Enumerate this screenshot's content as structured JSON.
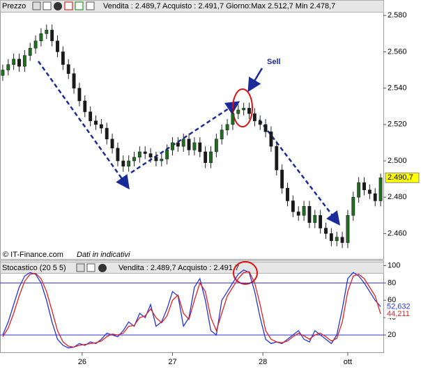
{
  "chart_data": [
    {
      "type": "candlestick",
      "title": "Prezzo",
      "info": "Vendita : 2.489,7 Acquisto : 2.491,7 Giorno:Max 2.512,7 Min 2.478,7",
      "annotations": [
        "Sell",
        "© IT-Finance.com",
        "Dati in indicativi"
      ],
      "up_color": "#1f6e1f",
      "down_color": "#1a1a1a",
      "last_label_color": "#ffff00",
      "xlim": [
        -0.5,
        69.5
      ],
      "ylim": [
        2446,
        2582
      ],
      "yticks": [
        {
          "value": 2460,
          "label": "2.460"
        },
        {
          "value": 2480,
          "label": "2.480"
        },
        {
          "value": 2500,
          "label": "2.500"
        },
        {
          "value": 2520,
          "label": "2.520"
        },
        {
          "value": 2540,
          "label": "2.540"
        },
        {
          "value": 2560,
          "label": "2.560"
        },
        {
          "value": 2580,
          "label": "2.580"
        }
      ],
      "x": [
        0,
        1,
        2,
        3,
        4,
        5,
        6,
        7,
        8,
        9,
        10,
        11,
        12,
        13,
        14,
        15,
        16,
        17,
        18,
        19,
        20,
        21,
        22,
        23,
        24,
        25,
        26,
        27,
        28,
        29,
        30,
        31,
        32,
        33,
        34,
        35,
        36,
        37,
        38,
        39,
        40,
        41,
        42,
        43,
        44,
        45,
        46,
        47,
        48,
        49,
        50,
        51,
        52,
        53,
        54,
        55,
        56,
        57,
        58,
        59,
        60,
        61,
        62,
        63,
        64,
        65,
        66,
        67,
        68,
        69
      ],
      "open": [
        2547,
        2550,
        2553,
        2556,
        2552,
        2558,
        2562,
        2566,
        2570,
        2572,
        2566,
        2560,
        2553,
        2548,
        2540,
        2533,
        2527,
        2522,
        2520,
        2518,
        2512,
        2507,
        2500,
        2497,
        2500,
        2502,
        2505,
        2504,
        2502,
        2500,
        2501,
        2506,
        2510,
        2508,
        2512,
        2506,
        2510,
        2505,
        2499,
        2505,
        2512,
        2517,
        2520,
        2526,
        2528,
        2529,
        2526,
        2522,
        2520,
        2516,
        2508,
        2495,
        2485,
        2478,
        2472,
        2470,
        2475,
        2466,
        2470,
        2463,
        2460,
        2456,
        2458,
        2455,
        2470,
        2480,
        2488,
        2484,
        2482,
        2478
      ],
      "high": [
        2553,
        2556,
        2559,
        2559,
        2561,
        2565,
        2569,
        2573,
        2575,
        2575,
        2569,
        2563,
        2556,
        2551,
        2543,
        2536,
        2530,
        2525,
        2523,
        2521,
        2515,
        2510,
        2503,
        2503,
        2505,
        2508,
        2508,
        2507,
        2505,
        2504,
        2509,
        2513,
        2513,
        2515,
        2515,
        2513,
        2513,
        2508,
        2508,
        2515,
        2520,
        2523,
        2529,
        2531,
        2532,
        2532,
        2529,
        2525,
        2523,
        2519,
        2511,
        2498,
        2488,
        2481,
        2475,
        2478,
        2478,
        2473,
        2473,
        2466,
        2463,
        2461,
        2461,
        2473,
        2483,
        2491,
        2491,
        2487,
        2485,
        2493
      ],
      "low": [
        2544,
        2547,
        2550,
        2549,
        2549,
        2555,
        2559,
        2563,
        2567,
        2563,
        2557,
        2550,
        2545,
        2537,
        2530,
        2524,
        2519,
        2517,
        2515,
        2509,
        2504,
        2497,
        2494,
        2494,
        2497,
        2499,
        2501,
        2499,
        2497,
        2497,
        2498,
        2503,
        2505,
        2505,
        2503,
        2503,
        2502,
        2496,
        2496,
        2502,
        2509,
        2514,
        2517,
        2523,
        2525,
        2523,
        2519,
        2517,
        2513,
        2505,
        2492,
        2482,
        2475,
        2469,
        2467,
        2467,
        2463,
        2463,
        2460,
        2457,
        2453,
        2453,
        2452,
        2452,
        2467,
        2477,
        2481,
        2479,
        2475,
        2475
      ],
      "close": [
        2550,
        2553,
        2556,
        2552,
        2558,
        2562,
        2566,
        2570,
        2572,
        2566,
        2560,
        2553,
        2548,
        2540,
        2533,
        2527,
        2522,
        2520,
        2518,
        2512,
        2507,
        2500,
        2497,
        2500,
        2502,
        2505,
        2504,
        2502,
        2500,
        2501,
        2506,
        2510,
        2508,
        2512,
        2506,
        2510,
        2505,
        2499,
        2505,
        2512,
        2517,
        2520,
        2526,
        2528,
        2529,
        2526,
        2522,
        2520,
        2516,
        2508,
        2495,
        2485,
        2478,
        2472,
        2470,
        2475,
        2466,
        2470,
        2463,
        2460,
        2456,
        2458,
        2455,
        2470,
        2480,
        2488,
        2484,
        2482,
        2478,
        2490.7
      ],
      "value_labels": [
        null,
        null,
        null,
        null,
        null,
        null,
        null,
        null,
        null,
        null,
        null,
        null,
        null,
        null,
        null,
        null,
        null,
        null,
        null,
        null,
        null,
        null,
        null,
        null,
        null,
        null,
        null,
        null,
        null,
        null,
        null,
        null,
        null,
        null,
        null,
        null,
        null,
        null,
        null,
        null,
        null,
        null,
        null,
        null,
        null,
        null,
        null,
        null,
        null,
        null,
        null,
        null,
        null,
        null,
        null,
        null,
        null,
        null,
        null,
        null,
        null,
        null,
        null,
        null,
        null,
        null,
        null,
        null,
        null,
        "2.490,7"
      ]
    },
    {
      "type": "line",
      "title": "Stocastico (20 5 5)",
      "info": "Vendita : 2.489,7 Acquisto : 2.491,7",
      "xlim": [
        -0.5,
        69.5
      ],
      "xticks": [
        {
          "value": 14.5,
          "label": "26"
        },
        {
          "value": 31,
          "label": "27"
        },
        {
          "value": 47.5,
          "label": "28"
        },
        {
          "value": 63,
          "label": "ott"
        }
      ],
      "ylim": [
        0,
        106
      ],
      "yticks": [
        20,
        40,
        60,
        80,
        100
      ],
      "hlines": [
        20,
        80
      ],
      "hline_color": "#3333cc",
      "x": [
        0,
        1,
        2,
        3,
        4,
        5,
        6,
        7,
        8,
        9,
        10,
        11,
        12,
        13,
        14,
        15,
        16,
        17,
        18,
        19,
        20,
        21,
        22,
        23,
        24,
        25,
        26,
        27,
        28,
        29,
        30,
        31,
        32,
        33,
        34,
        35,
        36,
        37,
        38,
        39,
        40,
        41,
        42,
        43,
        44,
        45,
        46,
        47,
        48,
        49,
        50,
        51,
        52,
        53,
        54,
        55,
        56,
        57,
        58,
        59,
        60,
        61,
        62,
        63,
        64,
        65,
        66,
        67,
        68,
        69
      ],
      "series": [
        {
          "color": "#2233dd",
          "values": [
            20,
            35,
            55,
            75,
            88,
            92,
            90,
            80,
            60,
            35,
            15,
            8,
            5,
            6,
            10,
            8,
            12,
            10,
            15,
            22,
            20,
            18,
            25,
            35,
            30,
            45,
            40,
            55,
            30,
            35,
            50,
            70,
            65,
            30,
            40,
            75,
            85,
            60,
            25,
            20,
            60,
            70,
            80,
            90,
            95,
            92,
            70,
            40,
            15,
            10,
            12,
            10,
            15,
            20,
            25,
            15,
            12,
            25,
            20,
            15,
            10,
            20,
            50,
            85,
            92,
            88,
            80,
            70,
            60,
            52.632
          ],
          "value_labels": [
            null,
            null,
            null,
            null,
            null,
            null,
            null,
            null,
            null,
            null,
            null,
            null,
            null,
            null,
            null,
            null,
            null,
            null,
            null,
            null,
            null,
            null,
            null,
            null,
            null,
            null,
            null,
            null,
            null,
            null,
            null,
            null,
            null,
            null,
            null,
            null,
            null,
            null,
            null,
            null,
            null,
            null,
            null,
            null,
            null,
            null,
            null,
            null,
            null,
            null,
            null,
            null,
            null,
            null,
            null,
            null,
            null,
            null,
            null,
            null,
            null,
            null,
            null,
            null,
            null,
            null,
            null,
            null,
            null,
            "52,632"
          ]
        },
        {
          "color": "#e02020",
          "values": [
            18,
            28,
            45,
            65,
            82,
            90,
            91,
            85,
            70,
            48,
            25,
            12,
            7,
            6,
            8,
            9,
            10,
            11,
            13,
            18,
            21,
            20,
            22,
            30,
            31,
            40,
            42,
            50,
            40,
            34,
            42,
            60,
            66,
            45,
            38,
            60,
            80,
            70,
            40,
            25,
            45,
            65,
            75,
            85,
            92,
            93,
            80,
            55,
            25,
            15,
            12,
            11,
            13,
            18,
            22,
            19,
            15,
            20,
            22,
            18,
            13,
            16,
            35,
            70,
            88,
            90,
            85,
            75,
            65,
            44.211
          ],
          "value_labels": [
            null,
            null,
            null,
            null,
            null,
            null,
            null,
            null,
            null,
            null,
            null,
            null,
            null,
            null,
            null,
            null,
            null,
            null,
            null,
            null,
            null,
            null,
            null,
            null,
            null,
            null,
            null,
            null,
            null,
            null,
            null,
            null,
            null,
            null,
            null,
            null,
            null,
            null,
            null,
            null,
            null,
            null,
            null,
            null,
            null,
            null,
            null,
            null,
            null,
            null,
            null,
            null,
            null,
            null,
            null,
            null,
            null,
            null,
            null,
            null,
            null,
            null,
            null,
            null,
            null,
            null,
            null,
            null,
            null,
            "44,211"
          ]
        }
      ]
    }
  ]
}
